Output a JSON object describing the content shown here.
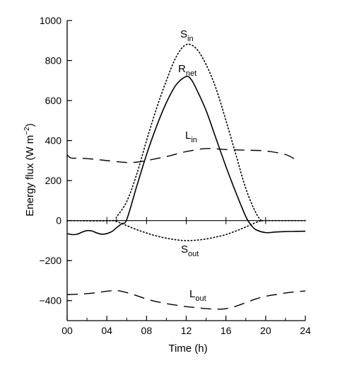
{
  "chart_data": {
    "type": "line",
    "xlabel": "Time (h)",
    "ylabel": {
      "main": "Energy flux (W m",
      "sup": "−2",
      "close": ")"
    },
    "xlim": [
      0,
      24
    ],
    "ylim": [
      -500,
      1000
    ],
    "x_ticks": [
      "00",
      "04",
      "08",
      "12",
      "16",
      "20",
      "24"
    ],
    "y_ticks": [
      "1000",
      "800",
      "600",
      "400",
      "200",
      "0",
      "−200",
      "−400"
    ],
    "grid": false,
    "series": [
      {
        "name": "S_in",
        "label_main": "S",
        "label_sub": "in",
        "style": "dotted",
        "x": [
          0,
          4.6,
          5,
          6,
          7,
          8,
          9,
          10,
          11,
          12,
          13,
          14,
          15,
          16,
          17,
          18,
          19,
          19.6,
          20,
          24
        ],
        "y": [
          0,
          0,
          20,
          95,
          230,
          400,
          560,
          700,
          820,
          880,
          860,
          780,
          660,
          500,
          330,
          160,
          40,
          0,
          0,
          0
        ]
      },
      {
        "name": "R_net",
        "label_main": "R",
        "label_sub": "net",
        "style": "solid",
        "x": [
          0,
          0.5,
          1,
          1.5,
          2,
          2.5,
          3,
          3.5,
          4,
          4.5,
          5,
          5.5,
          6,
          7,
          8,
          9,
          10,
          11,
          12,
          12.5,
          13,
          14,
          15,
          16,
          17,
          18,
          18.5,
          19,
          20,
          21,
          22,
          23,
          24
        ],
        "y": [
          -65,
          -70,
          -68,
          -58,
          -50,
          -52,
          -62,
          -68,
          -65,
          -55,
          -35,
          -15,
          5,
          170,
          330,
          470,
          590,
          680,
          720,
          705,
          660,
          550,
          410,
          270,
          140,
          20,
          -20,
          -45,
          -60,
          -57,
          -55,
          -54,
          -53
        ]
      },
      {
        "name": "L_in",
        "label_main": "L",
        "label_sub": "in",
        "style": "dashed",
        "x": [
          0,
          0.2,
          0.5,
          1,
          2,
          4,
          6,
          7,
          8,
          10,
          12,
          14,
          16,
          18,
          20,
          22,
          23
        ],
        "y": [
          330,
          318,
          312,
          312,
          310,
          300,
          290,
          292,
          300,
          320,
          345,
          360,
          355,
          352,
          348,
          330,
          305
        ]
      },
      {
        "name": "S_out",
        "label_main": "S",
        "label_sub": "out",
        "style": "dotted",
        "x": [
          4.6,
          5,
          6,
          7,
          8,
          9,
          10,
          11,
          12,
          13,
          14,
          15,
          16,
          17,
          18,
          19,
          19.6
        ],
        "y": [
          0,
          -5,
          -25,
          -45,
          -62,
          -77,
          -88,
          -96,
          -100,
          -98,
          -92,
          -82,
          -70,
          -52,
          -32,
          -10,
          0
        ]
      },
      {
        "name": "L_out",
        "label_main": "L",
        "label_sub": "out",
        "style": "dashed",
        "x": [
          0,
          1,
          2,
          3,
          4,
          5,
          6,
          7,
          8,
          9,
          10,
          11,
          12,
          13,
          14,
          15,
          16,
          17,
          18,
          19,
          20,
          21,
          22,
          23,
          24
        ],
        "y": [
          -370,
          -368,
          -365,
          -360,
          -353,
          -350,
          -360,
          -375,
          -392,
          -405,
          -415,
          -423,
          -430,
          -435,
          -440,
          -443,
          -440,
          -428,
          -410,
          -392,
          -378,
          -370,
          -362,
          -356,
          -352
        ]
      }
    ]
  }
}
